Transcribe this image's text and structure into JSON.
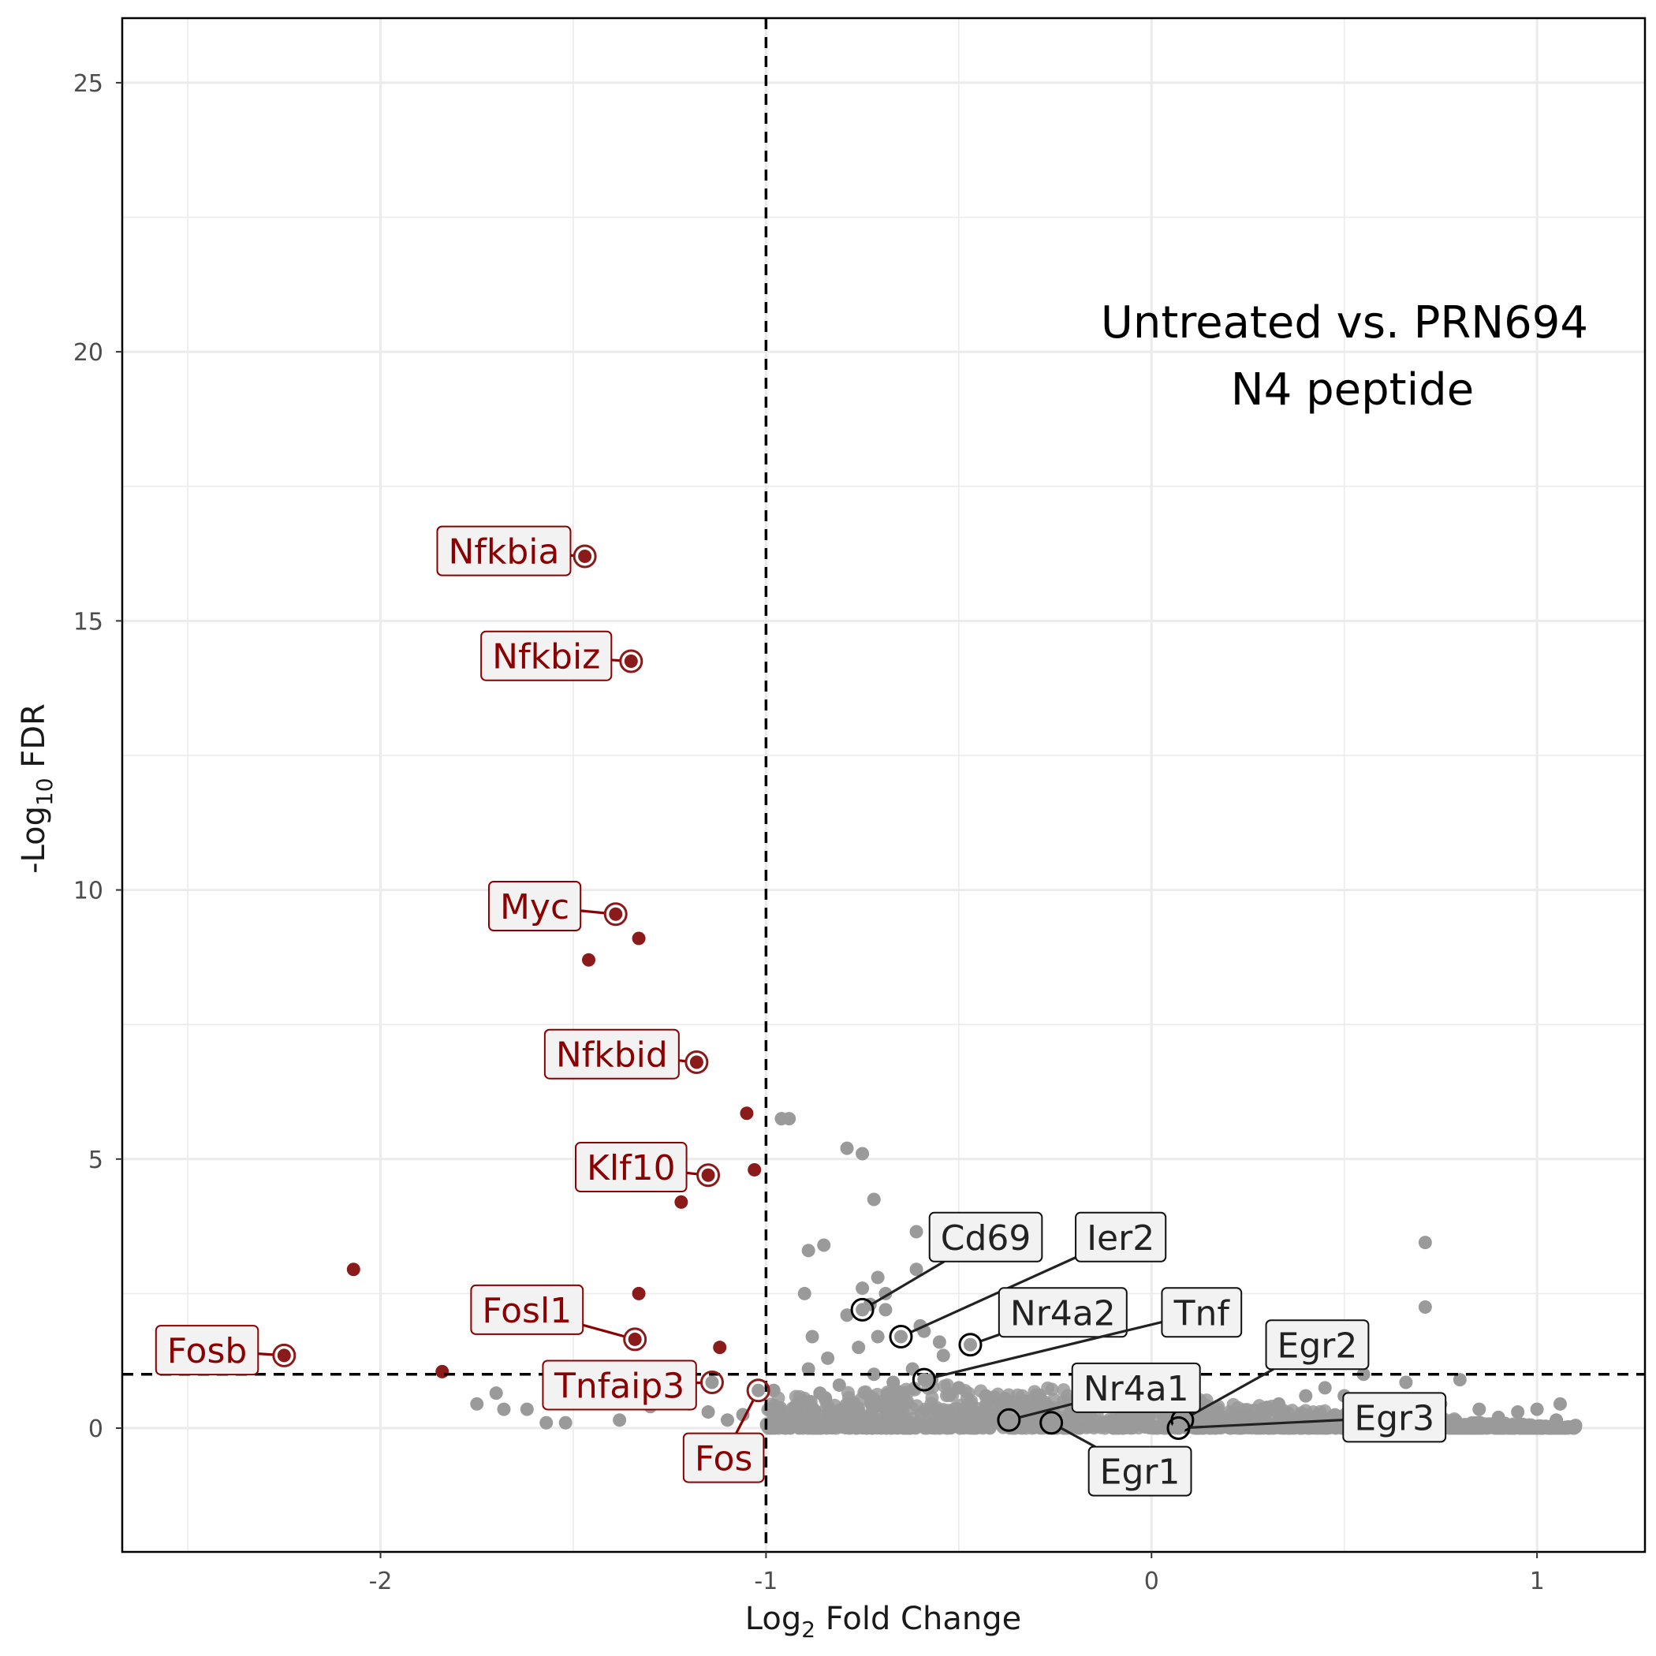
{
  "chart_data": {
    "type": "scatter",
    "title": "",
    "annotation": [
      "Untreated vs. PRN694",
      "N4 peptide"
    ],
    "xlabel": {
      "base": "Log",
      "sub": "2",
      "rest": " Fold Change"
    },
    "ylabel": {
      "base": "-Log",
      "sub": "10",
      "rest": " FDR"
    },
    "xlim": [
      -2.67,
      1.28
    ],
    "ylim": [
      -2.3,
      26.2
    ],
    "xticks": [
      -2,
      -1,
      0,
      1
    ],
    "xtick_labels": [
      "-2",
      "-1",
      "0",
      "1"
    ],
    "yticks": [
      0,
      5,
      10,
      15,
      20,
      25
    ],
    "ytick_labels": [
      "0",
      "5",
      "10",
      "15",
      "20",
      "25"
    ],
    "thresholds": {
      "x": -1,
      "y": 1
    },
    "grid": true,
    "colors": {
      "significant": "#8b1a1a",
      "label_text_significant": "#8b0000",
      "nonsignificant": "#9a9a9a",
      "label_box": "#f2f2f2",
      "black_label_text": "#222222"
    },
    "significant_points": [
      {
        "x": -1.46,
        "y": 8.7
      },
      {
        "x": -1.33,
        "y": 9.1
      },
      {
        "x": -1.05,
        "y": 5.85
      },
      {
        "x": -1.03,
        "y": 4.8
      },
      {
        "x": -1.22,
        "y": 4.2
      },
      {
        "x": -2.07,
        "y": 2.95
      },
      {
        "x": -1.33,
        "y": 2.5
      },
      {
        "x": -1.12,
        "y": 1.5
      },
      {
        "x": -1.84,
        "y": 1.05
      }
    ],
    "nonsignificant_points": [
      {
        "x": -0.96,
        "y": 5.75
      },
      {
        "x": -0.94,
        "y": 5.75
      },
      {
        "x": -0.79,
        "y": 5.2
      },
      {
        "x": -0.75,
        "y": 5.1
      },
      {
        "x": -0.72,
        "y": 4.25
      },
      {
        "x": -0.61,
        "y": 3.65
      },
      {
        "x": -0.85,
        "y": 3.4
      },
      {
        "x": -0.89,
        "y": 3.3
      },
      {
        "x": -0.61,
        "y": 2.95
      },
      {
        "x": -0.71,
        "y": 2.8
      },
      {
        "x": -0.75,
        "y": 2.6
      },
      {
        "x": -0.69,
        "y": 2.5
      },
      {
        "x": -0.9,
        "y": 2.5
      },
      {
        "x": -0.73,
        "y": 2.3
      },
      {
        "x": -0.69,
        "y": 2.2
      },
      {
        "x": -0.79,
        "y": 2.1
      },
      {
        "x": -0.6,
        "y": 1.9
      },
      {
        "x": -0.59,
        "y": 1.8
      },
      {
        "x": -0.88,
        "y": 1.7
      },
      {
        "x": -0.71,
        "y": 1.7
      },
      {
        "x": -0.76,
        "y": 1.5
      },
      {
        "x": -0.55,
        "y": 1.6
      },
      {
        "x": -0.84,
        "y": 1.3
      },
      {
        "x": -0.89,
        "y": 1.1
      },
      {
        "x": -0.54,
        "y": 1.35
      },
      {
        "x": -0.72,
        "y": 1.0
      },
      {
        "x": -0.62,
        "y": 1.1
      },
      {
        "x": 0.71,
        "y": 3.45
      },
      {
        "x": 0.71,
        "y": 2.25
      },
      {
        "x": -0.98,
        "y": 0.7
      },
      {
        "x": -0.86,
        "y": 0.65
      },
      {
        "x": -0.81,
        "y": 0.8
      },
      {
        "x": -0.67,
        "y": 0.85
      },
      {
        "x": -0.57,
        "y": 0.9
      },
      {
        "x": -0.5,
        "y": 0.75
      },
      {
        "x": -0.43,
        "y": 0.6
      },
      {
        "x": -0.38,
        "y": 0.55
      },
      {
        "x": -0.33,
        "y": 0.5
      },
      {
        "x": -0.28,
        "y": 0.4
      },
      {
        "x": -1.75,
        "y": 0.45
      },
      {
        "x": -1.7,
        "y": 0.65
      },
      {
        "x": -1.68,
        "y": 0.35
      },
      {
        "x": -1.62,
        "y": 0.35
      },
      {
        "x": -1.57,
        "y": 0.1
      },
      {
        "x": -1.52,
        "y": 0.1
      },
      {
        "x": -1.38,
        "y": 0.15
      },
      {
        "x": -1.3,
        "y": 0.4
      },
      {
        "x": -1.25,
        "y": 0.55
      },
      {
        "x": -1.2,
        "y": 0.45
      },
      {
        "x": -1.15,
        "y": 0.3
      },
      {
        "x": -1.1,
        "y": 0.15
      },
      {
        "x": -1.06,
        "y": 0.25
      },
      {
        "x": 0.05,
        "y": 0.3
      },
      {
        "x": 0.15,
        "y": 0.2
      },
      {
        "x": 0.25,
        "y": 0.25
      },
      {
        "x": 0.33,
        "y": 0.45
      },
      {
        "x": 0.4,
        "y": 0.6
      },
      {
        "x": 0.45,
        "y": 0.75
      },
      {
        "x": 0.5,
        "y": 0.6
      },
      {
        "x": 0.55,
        "y": 1.0
      },
      {
        "x": 0.6,
        "y": 0.5
      },
      {
        "x": 0.66,
        "y": 0.85
      },
      {
        "x": 0.75,
        "y": 0.45
      },
      {
        "x": 0.8,
        "y": 0.9
      },
      {
        "x": 0.85,
        "y": 0.35
      },
      {
        "x": 0.9,
        "y": 0.2
      },
      {
        "x": 0.95,
        "y": 0.3
      },
      {
        "x": 1.0,
        "y": 0.35
      },
      {
        "x": 1.05,
        "y": 0.15
      },
      {
        "x": 1.06,
        "y": 0.45
      },
      {
        "x": 1.1,
        "y": 0.05
      },
      {
        "x": 0.2,
        "y": 0.1
      },
      {
        "x": 0.35,
        "y": 0.2
      }
    ],
    "labeled_points": [
      {
        "gene": "Nfkbia",
        "x": -1.47,
        "y": 16.2,
        "significant": true,
        "label_x": -1.68,
        "label_y": 16.3
      },
      {
        "gene": "Nfkbiz",
        "x": -1.35,
        "y": 14.25,
        "significant": true,
        "label_x": -1.57,
        "label_y": 14.35
      },
      {
        "gene": "Myc",
        "x": -1.39,
        "y": 9.55,
        "significant": true,
        "label_x": -1.6,
        "label_y": 9.7
      },
      {
        "gene": "Nfkbid",
        "x": -1.18,
        "y": 6.8,
        "significant": true,
        "label_x": -1.4,
        "label_y": 6.95
      },
      {
        "gene": "Klf10",
        "x": -1.15,
        "y": 4.7,
        "significant": true,
        "label_x": -1.35,
        "label_y": 4.85
      },
      {
        "gene": "Fosl1",
        "x": -1.34,
        "y": 1.65,
        "significant": true,
        "label_x": -1.62,
        "label_y": 2.2
      },
      {
        "gene": "Fosb",
        "x": -2.25,
        "y": 1.35,
        "significant": true,
        "label_x": -2.45,
        "label_y": 1.45
      },
      {
        "gene": "Tnfaip3",
        "x": -1.14,
        "y": 0.85,
        "significant": false,
        "red": true,
        "label_x": -1.38,
        "label_y": 0.8
      },
      {
        "gene": "Fos",
        "x": -1.02,
        "y": 0.7,
        "significant": false,
        "red": true,
        "label_x": -1.11,
        "label_y": -0.55
      },
      {
        "gene": "Cd69",
        "x": -0.75,
        "y": 2.2,
        "significant": false,
        "label_x": -0.43,
        "label_y": 3.55
      },
      {
        "gene": "Ier2",
        "x": -0.65,
        "y": 1.7,
        "significant": false,
        "label_x": -0.08,
        "label_y": 3.55
      },
      {
        "gene": "Nr4a2",
        "x": -0.47,
        "y": 1.55,
        "significant": false,
        "label_x": -0.23,
        "label_y": 2.15
      },
      {
        "gene": "Tnf",
        "x": -0.59,
        "y": 0.9,
        "significant": false,
        "label_x": 0.13,
        "label_y": 2.15
      },
      {
        "gene": "Egr2",
        "x": 0.08,
        "y": 0.15,
        "significant": false,
        "label_x": 0.43,
        "label_y": 1.55
      },
      {
        "gene": "Nr4a1",
        "x": -0.37,
        "y": 0.15,
        "significant": false,
        "label_x": -0.04,
        "label_y": 0.75
      },
      {
        "gene": "Egr3",
        "x": 0.07,
        "y": 0.0,
        "significant": false,
        "label_x": 0.63,
        "label_y": 0.2
      },
      {
        "gene": "Egr1",
        "x": -0.26,
        "y": 0.1,
        "significant": false,
        "label_x": -0.03,
        "label_y": -0.8
      }
    ]
  }
}
